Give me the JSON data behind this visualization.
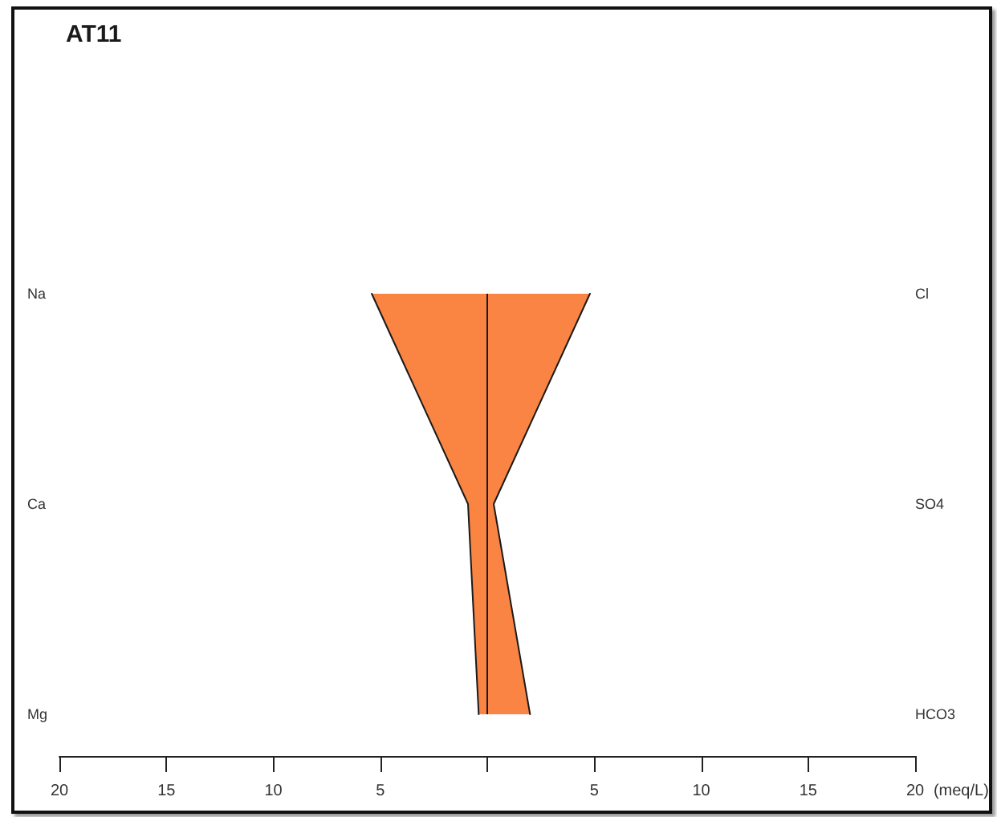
{
  "chart_data": {
    "type": "area",
    "orientation": "horizontal",
    "title": "AT11",
    "xlabel": "(meq/L)",
    "categories": [
      "Na",
      "Ca",
      "Mg"
    ],
    "y2_categories": [
      "Cl",
      "SO4",
      "HCO3"
    ],
    "series": [
      {
        "color": "#fa8442",
        "values": [
          -5.4,
          -0.9,
          -0.4
        ]
      },
      {
        "color": "#fa8443",
        "values": [
          4.8,
          0.3,
          2.0
        ]
      }
    ],
    "ref_lines": [
      {
        "axis": "x",
        "value": 0,
        "color": "#1a1a1a"
      }
    ],
    "xlim": [
      -20,
      20
    ],
    "xticks": [
      {
        "value": -20,
        "label": "20"
      },
      {
        "value": -15,
        "label": "15"
      },
      {
        "value": -10,
        "label": "10"
      },
      {
        "value": -5,
        "label": "5"
      },
      {
        "value": 0,
        "label": null
      },
      5,
      10,
      15,
      20
    ]
  }
}
